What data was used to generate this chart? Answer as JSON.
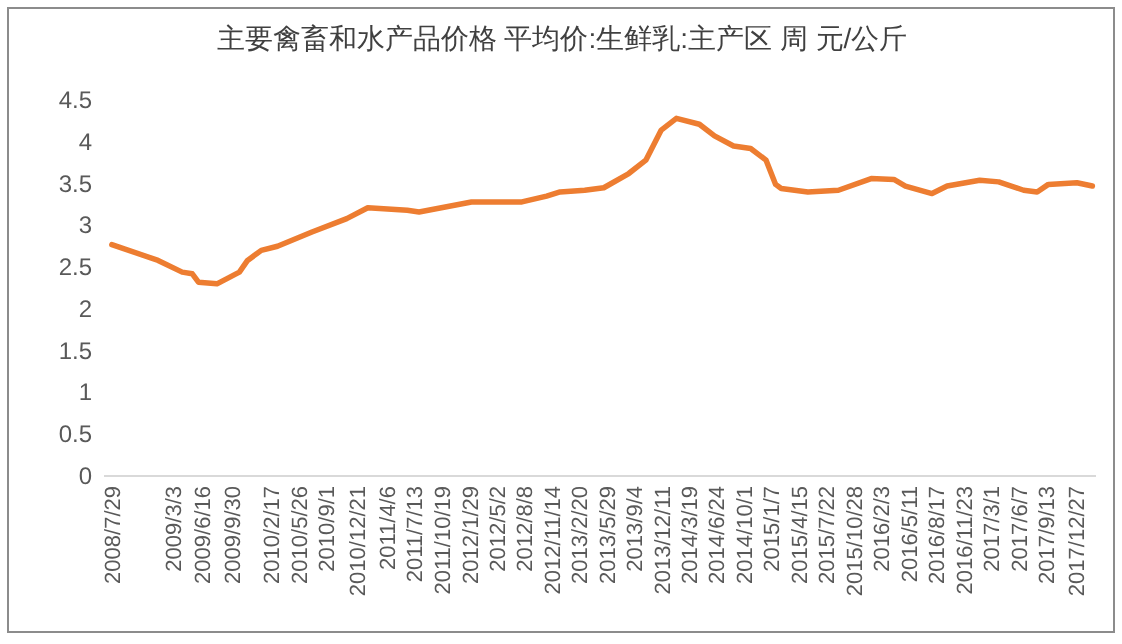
{
  "chart_data": {
    "type": "line",
    "title": "主要禽畜和水产品价格 平均价:生鲜乳:主产区 周 元/公斤",
    "x": [
      "2008-07-29",
      "2009-01-10",
      "2009-04-06",
      "2009-05-12",
      "2009-06-03",
      "2009-08-08",
      "2009-10-27",
      "2009-11-25",
      "2010-01-13",
      "2010-03-12",
      "2010-07-13",
      "2010-11-14",
      "2011-01-28",
      "2011-06-18",
      "2011-07-30",
      "2012-02-02",
      "2012-07-31",
      "2012-10-27",
      "2012-12-14",
      "2013-03-12",
      "2013-05-19",
      "2013-08-16",
      "2013-10-16",
      "2013-12-10",
      "2014-02-02",
      "2014-04-25",
      "2014-06-18",
      "2014-08-25",
      "2014-10-25",
      "2014-12-19",
      "2015-01-22",
      "2015-02-11",
      "2015-05-17",
      "2015-09-03",
      "2015-12-29",
      "2016-03-19",
      "2016-04-29",
      "2016-08-02",
      "2016-09-25",
      "2017-01-19",
      "2017-03-28",
      "2017-06-25",
      "2017-08-12",
      "2017-09-21",
      "2018-01-01",
      "2018-02-25"
    ],
    "series": [
      {
        "color": "#ed7d31",
        "values": [
          2.77,
          2.58,
          2.44,
          2.42,
          2.32,
          2.3,
          2.44,
          2.58,
          2.7,
          2.75,
          2.92,
          3.08,
          3.21,
          3.18,
          3.16,
          3.28,
          3.28,
          3.35,
          3.4,
          3.42,
          3.45,
          3.62,
          3.78,
          4.14,
          4.28,
          4.21,
          4.07,
          3.95,
          3.92,
          3.78,
          3.49,
          3.44,
          3.4,
          3.42,
          3.56,
          3.55,
          3.47,
          3.38,
          3.47,
          3.54,
          3.52,
          3.42,
          3.4,
          3.49,
          3.51,
          3.47
        ]
      }
    ],
    "xlim": [
      "2008-07-01",
      "2018-03-10"
    ],
    "xticks": [
      {
        "value": "2008-07-29",
        "label": "2008/7/29"
      },
      {
        "value": "2009-03-03",
        "label": "2009/3/3"
      },
      {
        "value": "2009-06-16",
        "label": "2009/6/16"
      },
      {
        "value": "2009-09-30",
        "label": "2009/9/30"
      },
      {
        "value": "2010-02-17",
        "label": "2010/2/17"
      },
      {
        "value": "2010-05-26",
        "label": "2010/5/26"
      },
      {
        "value": "2010-09-01",
        "label": "2010/9/1"
      },
      {
        "value": "2010-12-21",
        "label": "2010/12/21"
      },
      {
        "value": "2011-04-06",
        "label": "2011/4/6"
      },
      {
        "value": "2011-07-13",
        "label": "2011/7/13"
      },
      {
        "value": "2011-10-19",
        "label": "2011/10/19"
      },
      {
        "value": "2012-01-29",
        "label": "2012/1/29"
      },
      {
        "value": "2012-05-02",
        "label": "2012/5/2"
      },
      {
        "value": "2012-08-08",
        "label": "2012/8/8"
      },
      {
        "value": "2012-11-14",
        "label": "2012/11/14"
      },
      {
        "value": "2013-02-20",
        "label": "2013/2/20"
      },
      {
        "value": "2013-05-29",
        "label": "2013/5/29"
      },
      {
        "value": "2013-09-04",
        "label": "2013/9/4"
      },
      {
        "value": "2013-12-11",
        "label": "2013/12/11"
      },
      {
        "value": "2014-03-19",
        "label": "2014/3/19"
      },
      {
        "value": "2014-06-24",
        "label": "2014/6/24"
      },
      {
        "value": "2014-10-01",
        "label": "2014/10/1"
      },
      {
        "value": "2015-01-07",
        "label": "2015/1/7"
      },
      {
        "value": "2015-04-15",
        "label": "2015/4/15"
      },
      {
        "value": "2015-07-22",
        "label": "2015/7/22"
      },
      {
        "value": "2015-10-28",
        "label": "2015/10/28"
      },
      {
        "value": "2016-02-03",
        "label": "2016/2/3"
      },
      {
        "value": "2016-05-11",
        "label": "2016/5/11"
      },
      {
        "value": "2016-08-17",
        "label": "2016/8/17"
      },
      {
        "value": "2016-11-23",
        "label": "2016/11/23"
      },
      {
        "value": "2017-03-01",
        "label": "2017/3/1"
      },
      {
        "value": "2017-06-07",
        "label": "2017/6/7"
      },
      {
        "value": "2017-09-13",
        "label": "2017/9/13"
      },
      {
        "value": "2017-12-27",
        "label": "2017/12/27"
      }
    ],
    "ylim": [
      0,
      4.5
    ],
    "yticks": [
      0,
      0.5,
      1,
      1.5,
      2,
      2.5,
      3,
      3.5,
      4,
      4.5
    ],
    "grid": false,
    "line_style": "solid"
  }
}
